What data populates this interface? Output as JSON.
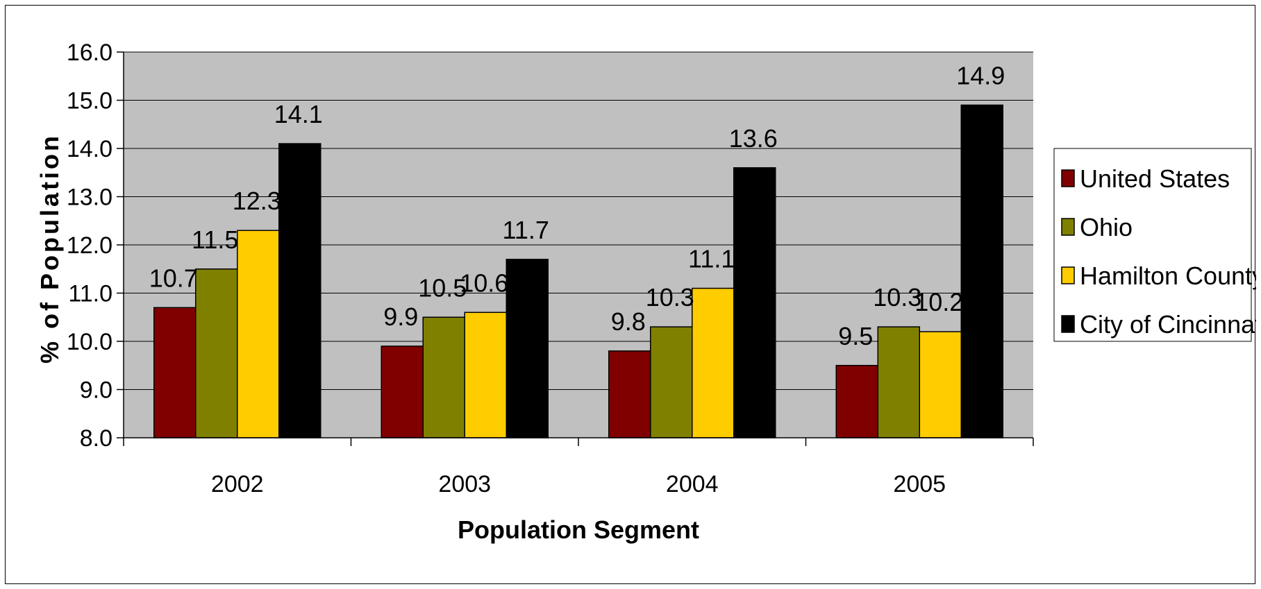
{
  "chart_data": {
    "type": "bar",
    "categories": [
      "2002",
      "2003",
      "2004",
      "2005"
    ],
    "series": [
      {
        "name": "United States",
        "values": [
          10.7,
          9.9,
          9.8,
          9.5
        ],
        "color": "#800000"
      },
      {
        "name": "Ohio",
        "values": [
          11.5,
          10.5,
          10.3,
          10.3
        ],
        "color": "#808000"
      },
      {
        "name": "Hamilton County",
        "values": [
          12.3,
          10.6,
          11.1,
          10.2
        ],
        "color": "#FFCC00"
      },
      {
        "name": "City of Cincinnati",
        "values": [
          14.1,
          11.7,
          13.6,
          14.9
        ],
        "color": "#000000"
      }
    ],
    "data_labels": [
      [
        "10.7",
        "9.9",
        "9.8",
        "9.5"
      ],
      [
        "11.5",
        "10.5",
        "10.3",
        "10.3"
      ],
      [
        "12.3",
        "10.6",
        "11.1",
        "10.2"
      ],
      [
        "14.1",
        "11.7",
        "13.6",
        "14.9"
      ]
    ],
    "xlabel": "Population Segment",
    "ylabel": "% of Population",
    "ylim": [
      8.0,
      16.0
    ],
    "yticks": [
      "8.0",
      "9.0",
      "10.0",
      "11.0",
      "12.0",
      "13.0",
      "14.0",
      "15.0",
      "16.0"
    ],
    "grid": true,
    "plot_background": "#C0C0C0",
    "legend_position": "right"
  }
}
